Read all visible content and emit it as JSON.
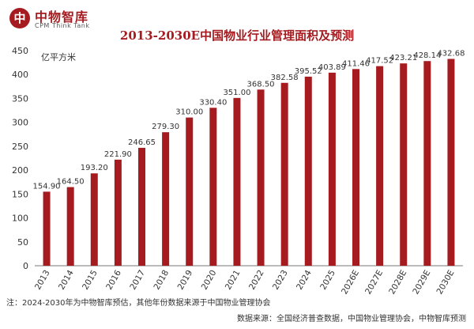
{
  "header": {
    "logo_mark": "中",
    "logo_cn": "中物智库",
    "logo_en": "CPM Think Tank"
  },
  "chart_data": {
    "type": "bar",
    "title": "2013-2030E中国物业行业管理面积及预测",
    "ylabel": "亿平方米",
    "xlabel": "",
    "ylim": [
      0,
      450
    ],
    "yticks": [
      0,
      50,
      100,
      150,
      200,
      250,
      300,
      350,
      400,
      450
    ],
    "grid": false,
    "bar_color": "#a61b1f",
    "categories": [
      "2013",
      "2014",
      "2015",
      "2016",
      "2017",
      "2018",
      "2019",
      "2020",
      "2021",
      "2022",
      "2023",
      "2024",
      "2025",
      "2026E",
      "2027E",
      "2028E",
      "2029E",
      "2030E"
    ],
    "values": [
      154.9,
      164.5,
      193.2,
      221.9,
      246.65,
      279.3,
      310.0,
      330.4,
      351.0,
      368.5,
      382.58,
      395.52,
      403.89,
      411.46,
      417.52,
      423.21,
      428.14,
      432.68
    ],
    "value_labels": [
      "154.90",
      "164.50",
      "193.20",
      "221.90",
      "246.65",
      "279.30",
      "310.00",
      "330.40",
      "351.00",
      "368.50",
      "382.58",
      "395.52",
      "403.89",
      "411.46",
      "417.52",
      "423.21",
      "428.14",
      "432.68"
    ]
  },
  "footnote": "注：2024-2030年为中物智库预估，其他年份数据来源于中国物业管理协会",
  "source": "数据来源：全国经济普查数据，中国物业管理协会，中物智库预测"
}
